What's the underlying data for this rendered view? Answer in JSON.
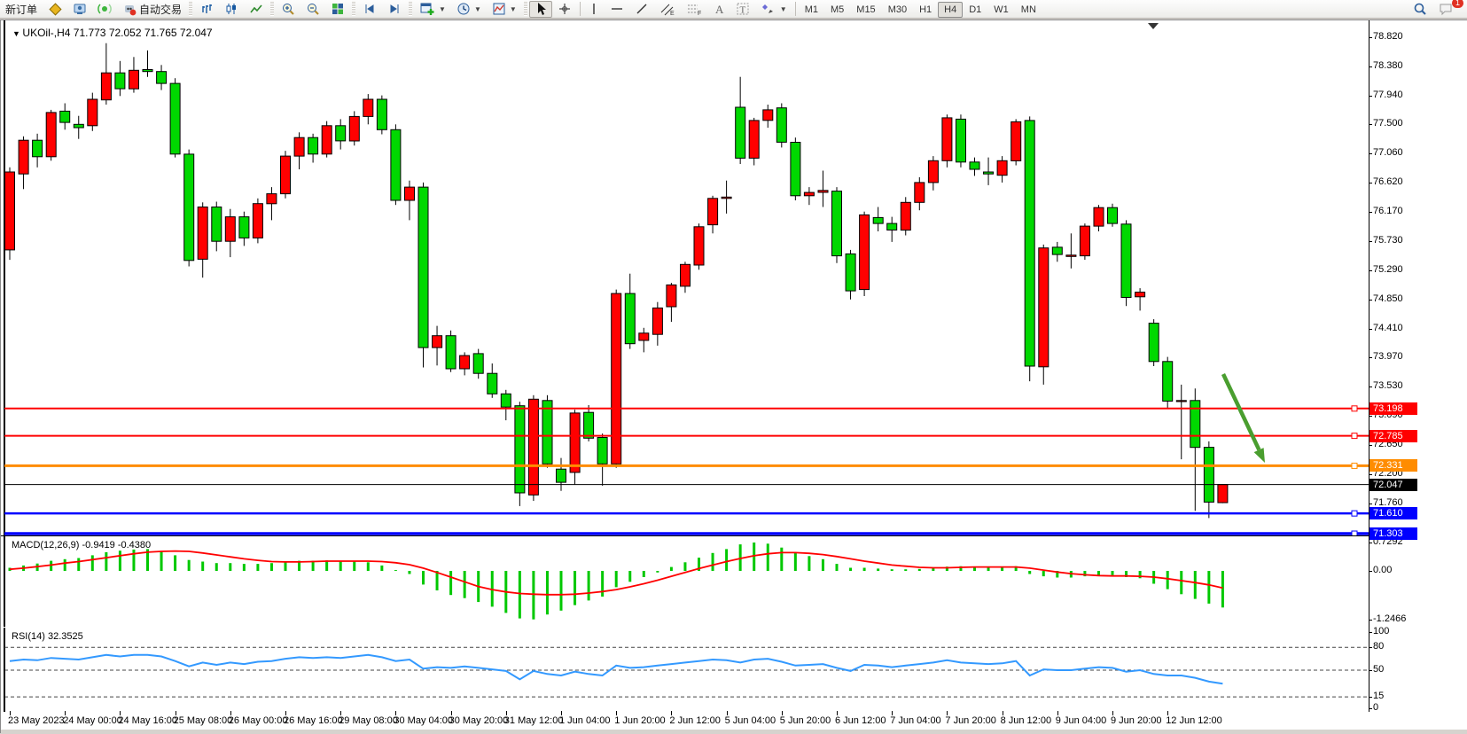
{
  "toolbar": {
    "new_order_label": "新订单",
    "autotrade_label": "自动交易",
    "timeframes": [
      "M1",
      "M5",
      "M15",
      "M30",
      "H1",
      "H4",
      "D1",
      "W1",
      "MN"
    ],
    "active_timeframe": "H4",
    "notification_badge": "1",
    "icons": [
      "quote-icon",
      "terminal-icon",
      "signals-icon",
      "autotrade-icon",
      "bar-chart-icon",
      "candlestick-chart-icon",
      "line-chart-icon",
      "zoom-in-icon",
      "zoom-out-icon",
      "tile-windows-icon",
      "shift-step-icon",
      "shift-end-icon",
      "new-chart-icon",
      "periods-clock-icon",
      "template-icon",
      "cursor-icon",
      "crosshair-icon",
      "vertical-line-icon",
      "horizontal-line-icon",
      "trendline-icon",
      "channel-icon",
      "fibonacci-icon",
      "text-icon",
      "text-label-icon",
      "shapes-icon",
      "search-icon",
      "chat-icon"
    ]
  },
  "chart": {
    "symbol_title": "UKOil-,H4",
    "ohlc_text": "71.773 72.052 71.765 72.047",
    "macd_title": "MACD(12,26,9)",
    "macd_values": "-0.9419 -0.4380",
    "rsi_title": "RSI(14)",
    "rsi_value": "32.3525"
  },
  "chart_data": {
    "type": "candlestick",
    "symbol": "UKOil-",
    "timeframe": "H4",
    "title": "UKOil-,H4 71.773 72.052 71.765 72.047",
    "ohlc_current": {
      "open": 71.773,
      "high": 72.052,
      "low": 71.765,
      "close": 72.047
    },
    "ylim": [
      71.2,
      78.96
    ],
    "grid": false,
    "colors": {
      "up": "#ff0000",
      "down": "#00d800",
      "wick": "#000000",
      "macd_hist": "#00c800",
      "macd_signal": "#ff0000",
      "rsi_line": "#3399ff",
      "arrow": "#4a9e2f"
    },
    "price_axis_ticks": [
      "78.820",
      "78.380",
      "77.940",
      "77.500",
      "77.060",
      "76.620",
      "76.170",
      "75.730",
      "75.290",
      "74.850",
      "74.410",
      "73.970",
      "73.530",
      "73.090",
      "72.650",
      "72.200",
      "71.760"
    ],
    "hlines": [
      {
        "price": 73.198,
        "label": "73.198",
        "color": "#ff0000",
        "width": 2
      },
      {
        "price": 72.785,
        "label": "72.785",
        "color": "#ff0000",
        "width": 2
      },
      {
        "price": 72.331,
        "label": "72.331",
        "color": "#ff8c00",
        "width": 3
      },
      {
        "price": 72.047,
        "label": "72.047",
        "color": "#000000",
        "width": 1
      },
      {
        "price": 71.61,
        "label": "71.610",
        "color": "#0000ff",
        "width": 2.5
      },
      {
        "price": 71.303,
        "label": "71.303",
        "color": "#0000ff",
        "width": 3.5
      }
    ],
    "time_labels": [
      "23 May 2023",
      "24 May 00:00",
      "24 May 16:00",
      "25 May 08:00",
      "26 May 00:00",
      "26 May 16:00",
      "29 May 08:00",
      "30 May 04:00",
      "30 May 20:00",
      "31 May 12:00",
      "1 Jun 04:00",
      "1 Jun 20:00",
      "2 Jun 12:00",
      "5 Jun 04:00",
      "5 Jun 20:00",
      "6 Jun 12:00",
      "7 Jun 04:00",
      "7 Jun 20:00",
      "8 Jun 12:00",
      "9 Jun 04:00",
      "9 Jun 20:00",
      "12 Jun 12:00"
    ],
    "candles": [
      [
        75.6,
        76.85,
        75.45,
        76.78
      ],
      [
        76.75,
        77.32,
        76.52,
        77.26
      ],
      [
        77.26,
        77.36,
        76.85,
        77.01
      ],
      [
        77.01,
        77.72,
        76.95,
        77.68
      ],
      [
        77.7,
        77.82,
        77.42,
        77.53
      ],
      [
        77.5,
        77.63,
        77.28,
        77.45
      ],
      [
        77.48,
        77.98,
        77.4,
        77.88
      ],
      [
        77.87,
        78.73,
        77.8,
        78.28
      ],
      [
        78.28,
        78.46,
        77.93,
        78.04
      ],
      [
        78.04,
        78.52,
        77.98,
        78.32
      ],
      [
        78.33,
        78.62,
        78.22,
        78.3
      ],
      [
        78.3,
        78.4,
        78.02,
        78.12
      ],
      [
        78.12,
        78.2,
        77.0,
        77.05
      ],
      [
        77.05,
        77.12,
        75.35,
        75.44
      ],
      [
        75.46,
        76.32,
        75.18,
        76.25
      ],
      [
        76.25,
        76.33,
        75.58,
        75.73
      ],
      [
        75.73,
        76.22,
        75.49,
        76.1
      ],
      [
        76.1,
        76.18,
        75.66,
        75.78
      ],
      [
        75.78,
        76.38,
        75.7,
        76.3
      ],
      [
        76.3,
        76.55,
        76.05,
        76.45
      ],
      [
        76.45,
        77.1,
        76.38,
        77.02
      ],
      [
        77.02,
        77.38,
        76.82,
        77.3
      ],
      [
        77.3,
        77.36,
        76.92,
        77.05
      ],
      [
        77.05,
        77.55,
        77.0,
        77.48
      ],
      [
        77.48,
        77.58,
        77.12,
        77.25
      ],
      [
        77.25,
        77.7,
        77.18,
        77.62
      ],
      [
        77.62,
        77.96,
        77.5,
        77.88
      ],
      [
        77.88,
        77.94,
        77.35,
        77.42
      ],
      [
        77.42,
        77.5,
        76.28,
        76.35
      ],
      [
        76.35,
        76.65,
        76.05,
        76.55
      ],
      [
        76.55,
        76.62,
        73.82,
        74.12
      ],
      [
        74.12,
        74.45,
        73.85,
        74.3
      ],
      [
        74.3,
        74.38,
        73.75,
        73.8
      ],
      [
        73.8,
        74.05,
        73.7,
        74.0
      ],
      [
        74.03,
        74.1,
        73.65,
        73.73
      ],
      [
        73.73,
        73.88,
        73.36,
        73.42
      ],
      [
        73.42,
        73.48,
        73.02,
        73.22
      ],
      [
        73.24,
        73.3,
        71.72,
        71.92
      ],
      [
        71.89,
        73.4,
        71.8,
        73.34
      ],
      [
        73.32,
        73.4,
        72.3,
        72.36
      ],
      [
        72.28,
        72.45,
        71.95,
        72.08
      ],
      [
        72.23,
        73.18,
        72.05,
        73.13
      ],
      [
        73.14,
        73.25,
        72.7,
        72.75
      ],
      [
        72.76,
        72.82,
        72.03,
        72.36
      ],
      [
        72.36,
        75.0,
        72.3,
        74.94
      ],
      [
        74.94,
        75.24,
        74.1,
        74.18
      ],
      [
        74.23,
        74.42,
        74.05,
        74.34
      ],
      [
        74.32,
        74.81,
        74.15,
        74.72
      ],
      [
        74.74,
        75.1,
        74.51,
        75.07
      ],
      [
        75.05,
        75.42,
        74.95,
        75.38
      ],
      [
        75.37,
        76.0,
        75.3,
        75.95
      ],
      [
        75.98,
        76.42,
        75.85,
        76.38
      ],
      [
        76.38,
        76.65,
        76.15,
        76.4
      ],
      [
        77.76,
        78.22,
        76.9,
        76.99
      ],
      [
        76.99,
        77.6,
        76.88,
        77.56
      ],
      [
        77.56,
        77.8,
        77.45,
        77.72
      ],
      [
        77.75,
        77.82,
        77.15,
        77.23
      ],
      [
        77.23,
        77.3,
        76.35,
        76.42
      ],
      [
        76.42,
        76.55,
        76.28,
        76.47
      ],
      [
        76.47,
        76.8,
        76.25,
        76.5
      ],
      [
        76.49,
        76.55,
        75.4,
        75.51
      ],
      [
        75.54,
        75.6,
        74.85,
        74.98
      ],
      [
        75.0,
        76.18,
        74.9,
        76.13
      ],
      [
        76.09,
        76.25,
        75.88,
        76.0
      ],
      [
        76.0,
        76.1,
        75.72,
        75.9
      ],
      [
        75.9,
        76.4,
        75.82,
        76.32
      ],
      [
        76.32,
        76.7,
        76.2,
        76.62
      ],
      [
        76.62,
        77.02,
        76.5,
        76.95
      ],
      [
        76.95,
        77.65,
        76.85,
        77.6
      ],
      [
        77.58,
        77.65,
        76.85,
        76.93
      ],
      [
        76.93,
        77.0,
        76.72,
        76.82
      ],
      [
        76.78,
        77.0,
        76.58,
        76.75
      ],
      [
        76.73,
        77.02,
        76.62,
        76.95
      ],
      [
        76.95,
        77.58,
        76.88,
        77.54
      ],
      [
        77.56,
        77.62,
        73.61,
        73.84
      ],
      [
        73.83,
        75.68,
        73.56,
        75.63
      ],
      [
        75.64,
        75.72,
        75.42,
        75.53
      ],
      [
        75.5,
        75.85,
        75.32,
        75.52
      ],
      [
        75.51,
        76.0,
        75.45,
        75.96
      ],
      [
        75.96,
        76.28,
        75.88,
        76.24
      ],
      [
        76.24,
        76.3,
        75.95,
        76.0
      ],
      [
        75.99,
        76.05,
        74.75,
        74.88
      ],
      [
        74.89,
        75.02,
        74.68,
        74.96
      ],
      [
        74.49,
        74.55,
        73.84,
        73.91
      ],
      [
        73.91,
        73.98,
        73.19,
        73.31
      ],
      [
        73.32,
        73.56,
        72.43,
        73.32
      ],
      [
        73.32,
        73.5,
        71.65,
        72.61
      ],
      [
        72.61,
        72.7,
        71.54,
        71.78
      ],
      [
        71.773,
        72.052,
        71.765,
        72.047
      ]
    ],
    "macd": {
      "axis_labels": [
        [
          "0.7292",
          0.7292
        ],
        [
          "0.00",
          0
        ],
        [
          "-1.2466",
          -1.2466
        ]
      ],
      "hist": [
        0.08,
        0.14,
        0.19,
        0.26,
        0.3,
        0.33,
        0.4,
        0.48,
        0.52,
        0.55,
        0.56,
        0.5,
        0.4,
        0.28,
        0.24,
        0.2,
        0.2,
        0.18,
        0.18,
        0.2,
        0.23,
        0.26,
        0.26,
        0.27,
        0.26,
        0.25,
        0.22,
        0.14,
        0.02,
        -0.08,
        -0.35,
        -0.5,
        -0.62,
        -0.7,
        -0.8,
        -0.92,
        -1.08,
        -1.22,
        -1.2466,
        -1.12,
        -1.02,
        -0.88,
        -0.76,
        -0.66,
        -0.42,
        -0.28,
        -0.16,
        -0.04,
        0.1,
        0.22,
        0.34,
        0.46,
        0.56,
        0.68,
        0.7292,
        0.7,
        0.6,
        0.48,
        0.38,
        0.3,
        0.18,
        0.08,
        0.08,
        0.06,
        0.04,
        0.04,
        0.05,
        0.07,
        0.11,
        0.12,
        0.1,
        0.08,
        0.09,
        0.12,
        -0.08,
        -0.14,
        -0.17,
        -0.17,
        -0.14,
        -0.11,
        -0.11,
        -0.16,
        -0.19,
        -0.33,
        -0.47,
        -0.6,
        -0.72,
        -0.84,
        -0.9419
      ],
      "signal": [
        0.04,
        0.07,
        0.11,
        0.15,
        0.2,
        0.24,
        0.29,
        0.34,
        0.39,
        0.44,
        0.48,
        0.5,
        0.51,
        0.5,
        0.46,
        0.41,
        0.36,
        0.31,
        0.27,
        0.24,
        0.23,
        0.23,
        0.24,
        0.25,
        0.25,
        0.25,
        0.25,
        0.24,
        0.21,
        0.16,
        0.07,
        -0.04,
        -0.16,
        -0.28,
        -0.4,
        -0.48,
        -0.54,
        -0.58,
        -0.6,
        -0.61,
        -0.61,
        -0.6,
        -0.57,
        -0.53,
        -0.48,
        -0.41,
        -0.33,
        -0.24,
        -0.14,
        -0.04,
        0.06,
        0.15,
        0.24,
        0.32,
        0.39,
        0.44,
        0.47,
        0.47,
        0.45,
        0.42,
        0.37,
        0.31,
        0.25,
        0.2,
        0.15,
        0.12,
        0.09,
        0.08,
        0.08,
        0.09,
        0.1,
        0.1,
        0.1,
        0.1,
        0.07,
        0.02,
        -0.03,
        -0.07,
        -0.1,
        -0.12,
        -0.13,
        -0.13,
        -0.14,
        -0.16,
        -0.2,
        -0.25,
        -0.3,
        -0.36,
        -0.438
      ]
    },
    "rsi": {
      "levels": [
        80,
        50,
        15
      ],
      "axis_labels": [
        [
          "100",
          100
        ],
        [
          "80",
          80
        ],
        [
          "50",
          50
        ],
        [
          "15",
          15
        ],
        [
          "0",
          0
        ]
      ],
      "values": [
        62,
        64,
        63,
        66,
        65,
        64,
        67,
        70,
        68,
        70,
        70,
        68,
        62,
        55,
        60,
        57,
        60,
        58,
        61,
        62,
        65,
        67,
        66,
        67,
        66,
        68,
        70,
        67,
        62,
        64,
        52,
        54,
        53,
        55,
        53,
        51,
        49,
        38,
        49,
        45,
        43,
        48,
        45,
        43,
        56,
        53,
        54,
        56,
        58,
        60,
        62,
        64,
        63,
        60,
        64,
        65,
        61,
        56,
        57,
        58,
        53,
        49,
        57,
        56,
        54,
        56,
        58,
        60,
        63,
        60,
        59,
        58,
        59,
        62,
        43,
        51,
        50,
        50,
        52,
        54,
        53,
        48,
        50,
        45,
        43,
        43,
        40,
        35,
        32.35
      ]
    },
    "annotation_arrow": {
      "from": [
        1379,
        421
      ],
      "to": [
        1426,
        521
      ]
    }
  }
}
